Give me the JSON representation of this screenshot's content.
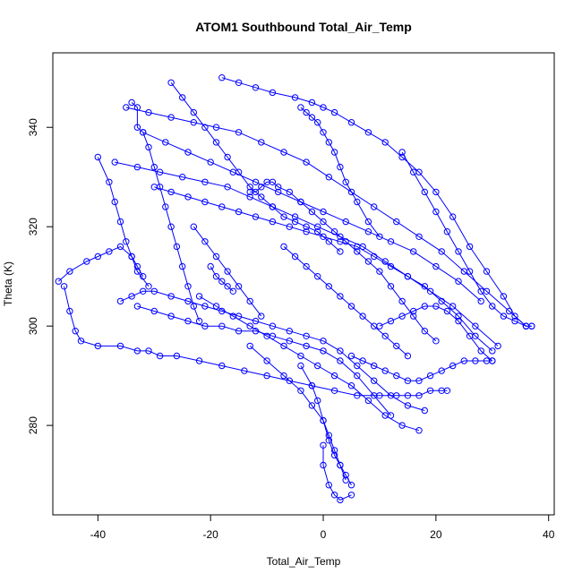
{
  "chart_data": {
    "type": "line",
    "title": "ATOM1 Southbound Total_Air_Temp",
    "xlabel": "Total_Air_Temp",
    "ylabel": "Theta (K)",
    "xlim": [
      -48,
      41
    ],
    "ylim": [
      262,
      355
    ],
    "xticks": [
      -40,
      -20,
      0,
      20,
      40
    ],
    "yticks": [
      280,
      300,
      320,
      340
    ],
    "series_color": "#0000ff",
    "marker": "open-circle",
    "grid": false,
    "legend": "none",
    "series": [
      {
        "segments": [
          {
            "x": [
              -18,
              -15,
              -12,
              -9,
              -5,
              -2,
              0,
              2,
              5,
              8,
              11,
              14,
              17,
              20,
              23,
              26,
              29,
              32,
              34,
              36,
              37
            ],
            "y": [
              350,
              349,
              348,
              347,
              346,
              345,
              344,
              343,
              341,
              339,
              337,
              334,
              331,
              327,
              322,
              316,
              311,
              306,
              302,
              300,
              300
            ]
          },
          {
            "x": [
              -35,
              -31,
              -27,
              -23,
              -19,
              -15,
              -11,
              -7,
              -3,
              1,
              5,
              9,
              13,
              17,
              21,
              25,
              29,
              33,
              36
            ],
            "y": [
              344,
              343,
              342,
              341,
              340,
              339,
              337,
              335,
              333,
              330,
              327,
              324,
              321,
              318,
              315,
              311,
              307,
              303,
              300
            ]
          },
          {
            "x": [
              -27,
              -25,
              -23,
              -21,
              -19,
              -17,
              -15,
              -13,
              -11,
              -9,
              -7,
              -5,
              -3,
              -1,
              1,
              3
            ],
            "y": [
              349,
              346,
              343,
              340,
              337,
              334,
              331,
              328,
              326,
              324,
              322,
              321,
              320,
              319,
              317,
              315
            ]
          },
          {
            "x": [
              -32,
              -28,
              -24,
              -20,
              -16,
              -12,
              -8,
              -4,
              0,
              4,
              8,
              12,
              16,
              20,
              24,
              28
            ],
            "y": [
              339,
              337,
              335,
              333,
              331,
              329,
              327,
              325,
              323,
              321,
              319,
              317,
              315,
              312,
              309,
              305
            ]
          },
          {
            "x": [
              -37,
              -33,
              -29,
              -25,
              -21,
              -17,
              -13,
              -9,
              -5,
              -1,
              3,
              7,
              11,
              15,
              19,
              23,
              27,
              31
            ],
            "y": [
              333,
              332,
              331,
              330,
              329,
              328,
              326,
              324,
              322,
              320,
              318,
              316,
              313,
              310,
              307,
              304,
              300,
              296
            ]
          },
          {
            "x": [
              -30,
              -27,
              -24,
              -21,
              -18,
              -15,
              -12,
              -9,
              -6,
              -3,
              0,
              3,
              6,
              9,
              12,
              15,
              18,
              21,
              24,
              27,
              30
            ],
            "y": [
              328,
              327,
              326,
              325,
              324,
              323,
              322,
              321,
              320,
              319,
              318,
              317,
              316,
              314,
              312,
              310,
              308,
              305,
              302,
              298,
              295
            ]
          },
          {
            "x": [
              -13,
              -12,
              -11,
              -10,
              -9,
              -8,
              -6,
              -4,
              -2,
              0,
              2,
              4,
              6,
              8,
              10,
              12,
              14,
              16,
              18,
              20
            ],
            "y": [
              327,
              327,
              328,
              329,
              329,
              328,
              327,
              325,
              323,
              321,
              319,
              317,
              315,
              313,
              311,
              308,
              305,
              302,
              299,
              297
            ]
          },
          {
            "x": [
              -34,
              -33,
              -33,
              -32,
              -31,
              -30,
              -29,
              -28,
              -27,
              -26,
              -25,
              -24,
              -23,
              -22
            ],
            "y": [
              345,
              344,
              340,
              339,
              336,
              332,
              328,
              324,
              320,
              316,
              312,
              308,
              304,
              301
            ]
          },
          {
            "x": [
              -40,
              -38,
              -37,
              -36,
              -35,
              -34,
              -33,
              -31
            ],
            "y": [
              334,
              329,
              325,
              321,
              317,
              314,
              311,
              308
            ]
          },
          {
            "x": [
              -47,
              -45,
              -42,
              -40,
              -38,
              -36,
              -34,
              -33,
              -32
            ],
            "y": [
              309,
              311,
              313,
              314,
              315,
              316,
              314,
              312,
              310
            ]
          },
          {
            "x": [
              -46,
              -45,
              -44,
              -43,
              -40,
              -36,
              -33,
              -31,
              -29,
              -26,
              -22,
              -18,
              -14,
              -10,
              -6,
              -2,
              2,
              6,
              10,
              13,
              15,
              17,
              19,
              21,
              22
            ],
            "y": [
              308,
              303,
              299,
              297,
              296,
              296,
              295,
              295,
              294,
              294,
              293,
              292,
              291,
              290,
              289,
              288,
              287,
              286,
              286,
              286,
              286,
              286,
              287,
              287,
              287
            ]
          },
          {
            "x": [
              -36,
              -34,
              -32,
              -30,
              -27,
              -24,
              -21,
              -18,
              -15,
              -12,
              -9,
              -6,
              -3,
              0,
              3,
              6,
              9,
              12,
              15,
              18
            ],
            "y": [
              305,
              306,
              307,
              307,
              306,
              305,
              304,
              303,
              302,
              301,
              300,
              299,
              298,
              297,
              295,
              292,
              289,
              286,
              284,
              283
            ]
          },
          {
            "x": [
              -33,
              -30,
              -27,
              -24,
              -21,
              -18,
              -15,
              -12,
              -9,
              -6,
              -3,
              0,
              3,
              6,
              9,
              12
            ],
            "y": [
              304,
              303,
              302,
              301,
              300,
              300,
              299,
              299,
              298,
              297,
              296,
              295,
              293,
              290,
              286,
              282
            ]
          },
          {
            "x": [
              -22,
              -19,
              -16,
              -13,
              -10,
              -7,
              -4,
              -1,
              2,
              5,
              8,
              11,
              14,
              17
            ],
            "y": [
              306,
              304,
              302,
              300,
              298,
              296,
              294,
              292,
              290,
              288,
              285,
              282,
              280,
              279
            ]
          },
          {
            "x": [
              -13,
              -10,
              -7,
              -4,
              -2,
              0,
              1,
              2,
              3,
              4,
              5
            ],
            "y": [
              296,
              293,
              290,
              287,
              284,
              281,
              277,
              274,
              272,
              270,
              268
            ]
          },
          {
            "x": [
              -4,
              -2,
              -1,
              0,
              1,
              2,
              3,
              4
            ],
            "y": [
              292,
              288,
              285,
              281,
              278,
              275,
              272,
              269
            ]
          },
          {
            "x": [
              0,
              0,
              1,
              2,
              3,
              5
            ],
            "y": [
              276,
              272,
              268,
              266,
              265,
              266
            ]
          },
          {
            "x": [
              5,
              7,
              9,
              11,
              13,
              15,
              17,
              19,
              21,
              23,
              25,
              27,
              29,
              30
            ],
            "y": [
              294,
              293,
              292,
              291,
              290,
              289,
              289,
              290,
              291,
              292,
              293,
              293,
              293,
              293
            ]
          },
          {
            "x": [
              10,
              12,
              14,
              16,
              18,
              20,
              22,
              24,
              26,
              28,
              30
            ],
            "y": [
              300,
              301,
              302,
              303,
              304,
              304,
              303,
              301,
              298,
              295,
              293
            ]
          },
          {
            "x": [
              -7,
              -5,
              -3,
              -1,
              1,
              3,
              5,
              7,
              9,
              11,
              13,
              15
            ],
            "y": [
              316,
              314,
              312,
              310,
              308,
              306,
              304,
              302,
              300,
              298,
              296,
              294
            ]
          },
          {
            "x": [
              14,
              16,
              18,
              20,
              22,
              24,
              26,
              28,
              30,
              32,
              34,
              36,
              37
            ],
            "y": [
              335,
              331,
              327,
              323,
              319,
              315,
              311,
              307,
              304,
              302,
              301,
              300,
              300
            ]
          },
          {
            "x": [
              -4,
              -3,
              -2,
              -1,
              0,
              1,
              2,
              3,
              4,
              6,
              8,
              10
            ],
            "y": [
              344,
              343,
              342,
              341,
              339,
              337,
              335,
              332,
              329,
              325,
              321,
              318
            ]
          },
          {
            "x": [
              -23,
              -21,
              -19,
              -17,
              -15,
              -13,
              -11
            ],
            "y": [
              320,
              317,
              314,
              311,
              308,
              305,
              302
            ]
          },
          {
            "x": [
              -20,
              -19,
              -18,
              -17,
              -16
            ],
            "y": [
              312,
              310,
              309,
              308,
              307
            ]
          }
        ]
      }
    ]
  }
}
